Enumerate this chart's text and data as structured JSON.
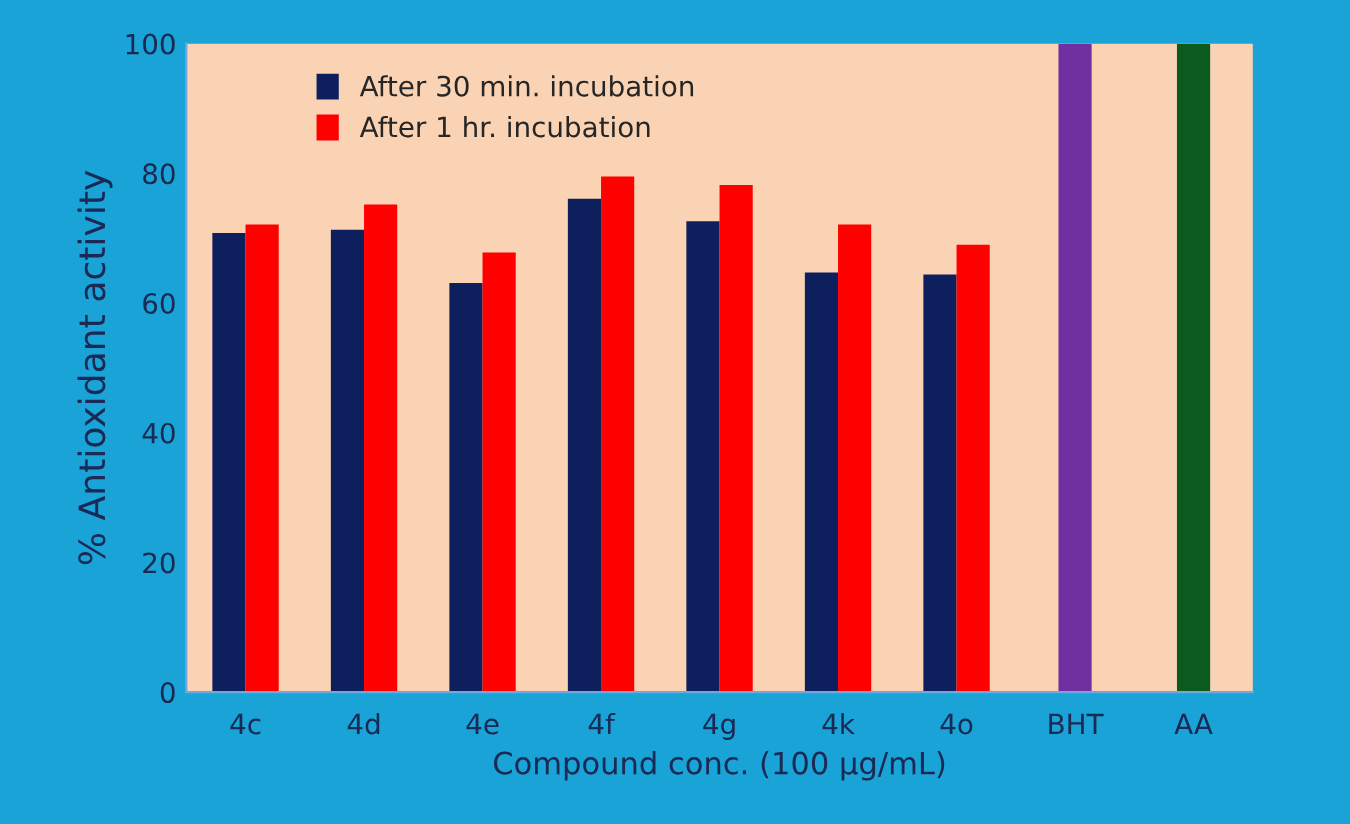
{
  "chart_data": {
    "type": "bar",
    "xlabel": "Compound conc. (100 µg/mL)",
    "ylabel": "% Antioxidant activity",
    "categories": [
      "4c",
      "4d",
      "4e",
      "4f",
      "4g",
      "4k",
      "4o",
      "BHT",
      "AA"
    ],
    "series": [
      {
        "name": "After 30 min. incubation",
        "color": "#0d1f5c",
        "values": [
          70.8,
          71.3,
          63.1,
          76.1,
          72.6,
          64.7,
          64.4,
          null,
          null
        ]
      },
      {
        "name": "After 1 hr. incubation",
        "color": "#ff0000",
        "values": [
          72.1,
          75.2,
          67.8,
          79.5,
          78.2,
          72.1,
          69.0,
          null,
          null
        ]
      },
      {
        "colors": [
          null,
          null,
          null,
          null,
          null,
          null,
          null,
          "#7030a0",
          "#0b5a1e"
        ],
        "values": [
          null,
          null,
          null,
          null,
          null,
          null,
          null,
          100,
          100
        ]
      }
    ],
    "ylim": [
      0,
      100
    ],
    "yticks": [
      0,
      20,
      40,
      60,
      80,
      100
    ],
    "grid": false,
    "legend": "top left"
  }
}
